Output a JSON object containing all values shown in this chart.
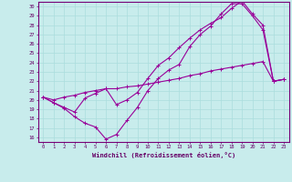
{
  "xlabel": "Windchill (Refroidissement éolien,°C)",
  "xlim": [
    -0.5,
    23.5
  ],
  "ylim": [
    15.5,
    30.5
  ],
  "xticks": [
    0,
    1,
    2,
    3,
    4,
    5,
    6,
    7,
    8,
    9,
    10,
    11,
    12,
    13,
    14,
    15,
    16,
    17,
    18,
    19,
    20,
    21,
    22,
    23
  ],
  "yticks": [
    16,
    17,
    18,
    19,
    20,
    21,
    22,
    23,
    24,
    25,
    26,
    27,
    28,
    29,
    30
  ],
  "background_color": "#c8ecec",
  "line_color": "#990099",
  "grid_color": "#aadddd",
  "curve1_x": [
    0,
    1,
    2,
    3,
    4,
    5,
    6,
    7,
    8,
    9,
    10,
    11,
    12,
    13,
    14,
    15,
    16,
    17,
    18,
    19,
    20,
    21,
    22,
    23
  ],
  "curve1_y": [
    20.3,
    19.7,
    19.1,
    18.2,
    17.5,
    17.1,
    15.8,
    16.3,
    17.8,
    19.2,
    21.0,
    22.3,
    23.2,
    23.8,
    25.7,
    27.0,
    27.9,
    29.2,
    30.3,
    30.3,
    29.0,
    27.5,
    22.0,
    22.2
  ],
  "curve2_x": [
    0,
    1,
    2,
    3,
    4,
    5,
    6,
    7,
    8,
    9,
    10,
    11,
    12,
    13,
    14,
    15,
    16,
    17,
    18,
    19,
    20,
    21,
    22,
    23
  ],
  "curve2_y": [
    20.3,
    19.7,
    19.2,
    18.7,
    20.2,
    20.7,
    21.2,
    19.5,
    20.0,
    20.8,
    22.3,
    23.7,
    24.5,
    25.6,
    26.6,
    27.5,
    28.2,
    28.8,
    29.8,
    30.6,
    29.2,
    28.0,
    22.0,
    22.2
  ],
  "curve3_x": [
    0,
    1,
    2,
    3,
    4,
    5,
    6,
    7,
    8,
    9,
    10,
    11,
    12,
    13,
    14,
    15,
    16,
    17,
    18,
    19,
    20,
    21,
    22,
    23
  ],
  "curve3_y": [
    20.3,
    20.0,
    20.3,
    20.5,
    20.8,
    21.0,
    21.2,
    21.2,
    21.4,
    21.5,
    21.7,
    21.9,
    22.1,
    22.3,
    22.6,
    22.8,
    23.1,
    23.3,
    23.5,
    23.7,
    23.9,
    24.1,
    22.0,
    22.2
  ]
}
